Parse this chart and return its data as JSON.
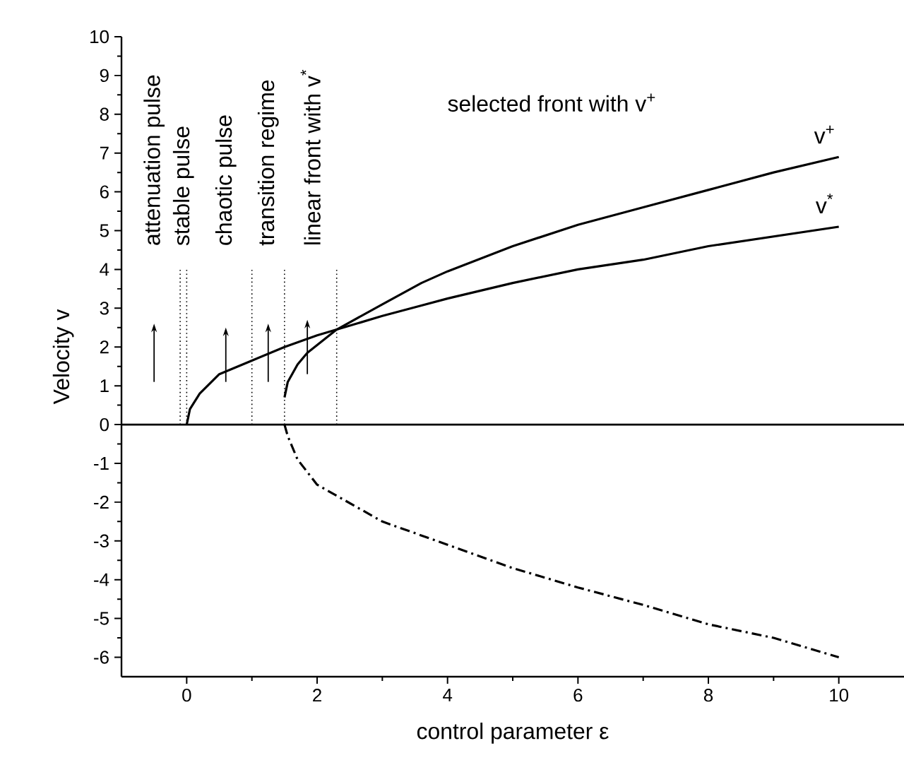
{
  "chart_data": {
    "type": "line",
    "xlabel": "control parameter ε",
    "ylabel": "Velocity v",
    "xlim": [
      -1,
      11
    ],
    "ylim": [
      -6.5,
      10
    ],
    "xticks": [
      0,
      2,
      4,
      6,
      8,
      10
    ],
    "yticks": [
      -6,
      -5,
      -4,
      -3,
      -2,
      -1,
      0,
      1,
      2,
      3,
      4,
      5,
      6,
      7,
      8,
      9,
      10
    ],
    "marker": "none",
    "series": [
      {
        "name": "v$^{+}$",
        "color": "#000000",
        "line_style": "solid",
        "x": [
          1.5,
          1.55,
          1.7,
          1.85,
          2,
          2.3,
          3,
          3.6,
          4,
          5,
          6,
          7,
          8,
          9,
          10
        ],
        "values": [
          0.7,
          1.1,
          1.55,
          1.85,
          2.05,
          2.45,
          3.1,
          3.65,
          3.95,
          4.6,
          5.15,
          5.6,
          6.05,
          6.5,
          6.9
        ]
      },
      {
        "name": "v$^{*}$",
        "color": "#000000",
        "line_style": "solid",
        "x": [
          0,
          0.05,
          0.2,
          0.5,
          1,
          1.5,
          2,
          2.3,
          3,
          3.6,
          4,
          5,
          6,
          7,
          8,
          9,
          10
        ],
        "values": [
          0,
          0.4,
          0.8,
          1.3,
          1.65,
          2.0,
          2.3,
          2.45,
          2.8,
          3.07,
          3.25,
          3.65,
          4.0,
          4.25,
          4.6,
          4.85,
          5.1
        ]
      },
      {
        "color": "#000000",
        "line_style": "dashdot",
        "x": [
          1.5,
          1.55,
          1.7,
          2,
          3,
          4,
          5,
          6,
          7,
          8,
          9,
          10
        ],
        "values": [
          0,
          -0.3,
          -0.9,
          -1.55,
          -2.5,
          -3.1,
          -3.7,
          -4.2,
          -4.65,
          -5.15,
          -5.5,
          -6.0
        ]
      },
      {
        "color": "#000000",
        "line_style": "dotted",
        "x": [
          -0.1,
          -0.1
        ],
        "values": [
          0,
          4
        ]
      },
      {
        "color": "#000000",
        "line_style": "dotted",
        "x": [
          0,
          0
        ],
        "values": [
          0,
          4
        ]
      },
      {
        "color": "#000000",
        "line_style": "dotted",
        "x": [
          1,
          1
        ],
        "values": [
          0,
          4
        ]
      },
      {
        "color": "#000000",
        "line_style": "dotted",
        "x": [
          1.5,
          1.5
        ],
        "values": [
          0,
          4
        ]
      },
      {
        "color": "#000000",
        "line_style": "dotted",
        "x": [
          2.3,
          2.3
        ],
        "values": [
          0,
          4
        ]
      }
    ],
    "ref_lines": [
      {
        "axis": "y",
        "value": 0
      }
    ],
    "annotations": [
      "attenuation pulse",
      "stable pulse",
      "chaotic pulse",
      "transition regime",
      "linear front with v$^{*}$",
      "selected front with v$^{+}$"
    ]
  }
}
